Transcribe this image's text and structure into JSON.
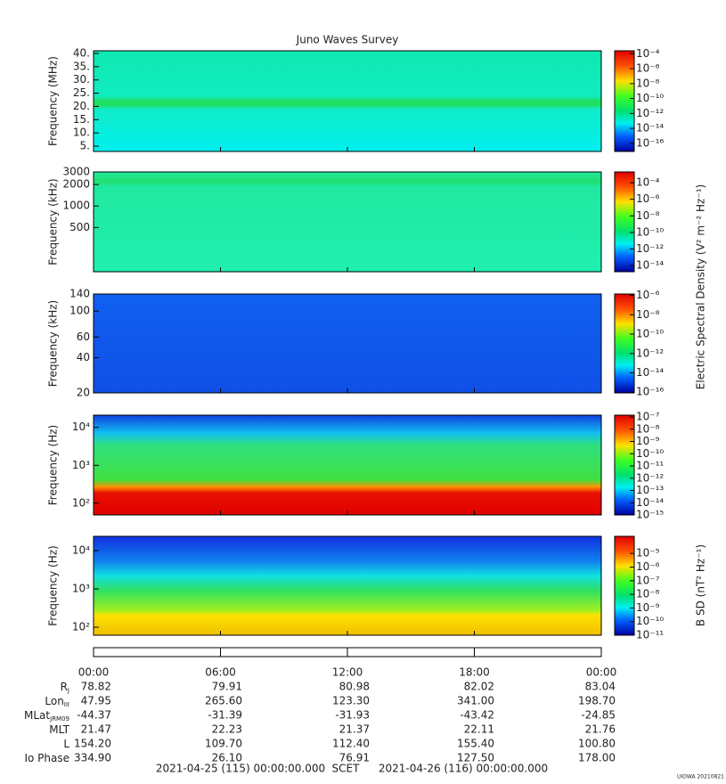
{
  "chart_data": [
    {
      "type": "spectrogram",
      "title": "Juno Waves Survey",
      "ylabel": "Frequency (MHz)",
      "log": false,
      "ylim": [
        3,
        41
      ],
      "yticks": [
        {
          "value": 5,
          "label": "5."
        },
        {
          "value": 10,
          "label": "10."
        },
        {
          "value": 15,
          "label": "15."
        },
        {
          "value": 20,
          "label": "20."
        },
        {
          "value": 25,
          "label": "25."
        },
        {
          "value": 30,
          "label": "30."
        },
        {
          "value": 35,
          "label": "35."
        },
        {
          "value": 40,
          "label": "40."
        }
      ],
      "clim": [
        0.00025,
        8e-18
      ],
      "clog": true,
      "cticks": [
        {
          "value": 0.0001,
          "label": "10⁻⁴"
        },
        {
          "value": 1e-06,
          "label": "10⁻⁶"
        },
        {
          "value": 1e-08,
          "label": "10⁻⁸"
        },
        {
          "value": 1e-10,
          "label": "10⁻¹⁰"
        },
        {
          "value": 1e-12,
          "label": "10⁻¹²"
        },
        {
          "value": 1e-14,
          "label": "10⁻¹⁴"
        },
        {
          "value": 1e-16,
          "label": "10⁻¹⁶"
        }
      ]
    },
    {
      "type": "spectrogram",
      "ylabel": "Frequency (kHz)",
      "log": true,
      "ylim": [
        120,
        3000
      ],
      "yticks": [
        500,
        1000,
        2000,
        3000
      ],
      "clim": [
        0.002,
        1.8e-15
      ],
      "clog": true,
      "cticks": [
        {
          "value": 0.0001,
          "label": "10⁻⁴"
        },
        {
          "value": 1e-06,
          "label": "10⁻⁶"
        },
        {
          "value": 1e-08,
          "label": "10⁻⁸"
        },
        {
          "value": 1e-10,
          "label": "10⁻¹⁰"
        },
        {
          "value": 1e-12,
          "label": "10⁻¹²"
        },
        {
          "value": 1e-14,
          "label": "10⁻¹⁴"
        }
      ]
    },
    {
      "type": "spectrogram",
      "ylabel": "Frequency (kHz)",
      "log": true,
      "ylim": [
        20,
        140
      ],
      "yticks": [
        20,
        40,
        60,
        100,
        140
      ],
      "clim": [
        1.4e-06,
        8.5e-17
      ],
      "clog": true,
      "cticks": [
        {
          "value": 1e-06,
          "label": "10⁻⁶"
        },
        {
          "value": 1e-08,
          "label": "10⁻⁸"
        },
        {
          "value": 1e-10,
          "label": "10⁻¹⁰"
        },
        {
          "value": 1e-12,
          "label": "10⁻¹²"
        },
        {
          "value": 1e-14,
          "label": "10⁻¹⁴"
        },
        {
          "value": 1e-16,
          "label": "10⁻¹⁶"
        }
      ]
    },
    {
      "type": "spectrogram",
      "ylabel": "Frequency (Hz)",
      "log": true,
      "ylim": [
        49,
        21000
      ],
      "yticks": [
        {
          "value": 100,
          "label": "10²"
        },
        {
          "value": 1000,
          "label": "10³"
        },
        {
          "value": 10000,
          "label": "10⁴"
        }
      ],
      "clim": [
        1.4e-07,
        1e-15
      ],
      "clog": true,
      "cticks": [
        {
          "value": 1e-07,
          "label": "10⁻⁷"
        },
        {
          "value": 1e-08,
          "label": "10⁻⁸"
        },
        {
          "value": 1e-09,
          "label": "10⁻⁹"
        },
        {
          "value": 1e-10,
          "label": "10⁻¹⁰"
        },
        {
          "value": 1e-11,
          "label": "10⁻¹¹"
        },
        {
          "value": 1e-12,
          "label": "10⁻¹²"
        },
        {
          "value": 1e-13,
          "label": "10⁻¹³"
        },
        {
          "value": 1e-14,
          "label": "10⁻¹⁴"
        },
        {
          "value": 1e-15,
          "label": "10⁻¹⁵"
        }
      ]
    },
    {
      "type": "spectrogram",
      "ylabel": "Frequency (Hz)",
      "log": true,
      "ylim": [
        62,
        23500
      ],
      "yticks": [
        {
          "value": 100,
          "label": "10²"
        },
        {
          "value": 1000,
          "label": "10³"
        },
        {
          "value": 10000,
          "label": "10⁴"
        }
      ],
      "clim": [
        0.00018,
        1e-11
      ],
      "clog": true,
      "cticks": [
        {
          "value": 1e-05,
          "label": "10⁻⁵"
        },
        {
          "value": 1e-06,
          "label": "10⁻⁶"
        },
        {
          "value": 1e-07,
          "label": "10⁻⁷"
        },
        {
          "value": 1e-08,
          "label": "10⁻⁸"
        },
        {
          "value": 1e-09,
          "label": "10⁻⁹"
        },
        {
          "value": 1e-10,
          "label": "10⁻¹⁰"
        },
        {
          "value": 1e-11,
          "label": "10⁻¹¹"
        }
      ]
    }
  ],
  "colorbar_labels": [
    "Electric Spectral Density (V² m⁻² Hz⁻¹)",
    "B SD (nT² Hz⁻¹)"
  ],
  "xaxis": {
    "xlim": [
      0,
      24
    ],
    "xticks": [
      {
        "value": 0,
        "label": "00:00"
      },
      {
        "value": 6,
        "label": "06:00"
      },
      {
        "value": 12,
        "label": "12:00"
      },
      {
        "value": 18,
        "label": "18:00"
      },
      {
        "value": 24,
        "label": "00:00"
      }
    ]
  },
  "ephemeris": [
    {
      "label": {
        "text": "R",
        "sub": "J"
      },
      "values": [
        "78.82",
        "79.91",
        "80.98",
        "82.02",
        "83.04"
      ]
    },
    {
      "label": {
        "text": "Lon",
        "sub": "III"
      },
      "values": [
        "47.95",
        "265.60",
        "123.30",
        "341.00",
        "198.70"
      ]
    },
    {
      "label": {
        "text": "MLat",
        "sub": "JRM09"
      },
      "values": [
        "-44.37",
        "-31.39",
        "-31.93",
        "-43.42",
        "-24.85"
      ]
    },
    {
      "label": {
        "text": "MLT"
      },
      "values": [
        "21.47",
        "22.23",
        "21.37",
        "22.11",
        "21.76"
      ]
    },
    {
      "label": {
        "text": "L"
      },
      "values": [
        "154.20",
        "109.70",
        "112.40",
        "155.40",
        "100.80"
      ]
    },
    {
      "label": {
        "text": "Io Phase"
      },
      "values": [
        "334.90",
        "26.10",
        "76.91",
        "127.50",
        "178.00"
      ]
    }
  ],
  "footer": {
    "start": "2021-04-25 (115) 00:00:00.000",
    "center": "SCET",
    "end": "2021-04-26 (116) 00:00:00.000",
    "credit": "UIOWA 20210821"
  }
}
